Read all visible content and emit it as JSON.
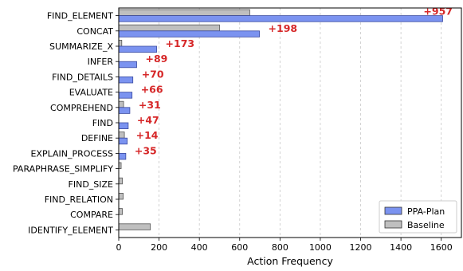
{
  "chart_data": {
    "type": "bar",
    "orientation": "horizontal",
    "title": "",
    "xlabel": "Action Frequency",
    "ylabel": "",
    "xlim": [
      0,
      1700
    ],
    "xticks": [
      0,
      200,
      400,
      600,
      800,
      1000,
      1200,
      1400,
      1600
    ],
    "grid": "vertical-dashed",
    "legend_position": "lower-right",
    "categories": [
      "FIND_ELEMENT",
      "CONCAT",
      "SUMMARIZE_X",
      "INFER",
      "FIND_DETAILS",
      "EVALUATE",
      "COMPREHEND",
      "FIND",
      "DEFINE",
      "EXPLAIN_PROCESS",
      "PARAPHRASE_SIMPLIFY",
      "FIND_SIZE",
      "FIND_RELATION",
      "COMPARE",
      "IDENTIFY_ELEMENT"
    ],
    "series": [
      {
        "name": "PPA-Plan",
        "color": "#7b93f0",
        "values": [
          1607,
          698,
          188,
          89,
          70,
          66,
          55,
          47,
          42,
          35,
          0,
          0,
          0,
          0,
          0
        ]
      },
      {
        "name": "Baseline",
        "color": "#bfbfbf",
        "values": [
          650,
          500,
          15,
          0,
          0,
          0,
          24,
          0,
          28,
          0,
          12,
          18,
          22,
          18,
          157
        ]
      }
    ],
    "annotations": [
      "+957",
      "+198",
      "+173",
      "+89",
      "+70",
      "+66",
      "+31",
      "+47",
      "+14",
      "+35",
      "",
      "",
      "",
      "",
      ""
    ],
    "annotation_color": "#d62728"
  }
}
